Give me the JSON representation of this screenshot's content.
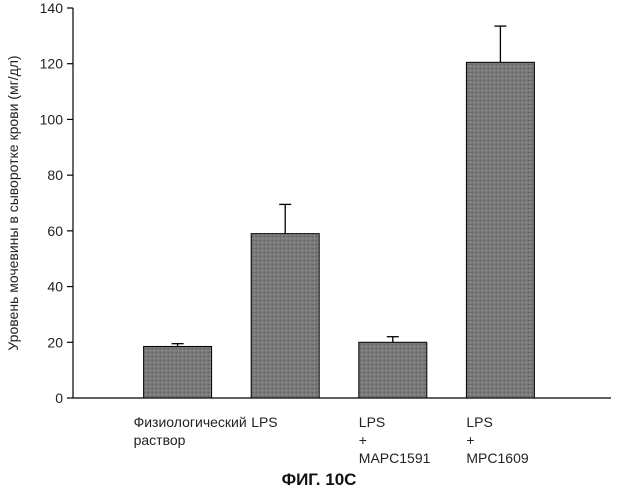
{
  "chart_data": {
    "type": "bar",
    "title": "",
    "xlabel": "",
    "ylabel": "Уровень мочевины в сыворотке крови (мг/дл)",
    "ylim": [
      0,
      140
    ],
    "yticks": [
      0,
      20,
      40,
      60,
      80,
      100,
      120,
      140
    ],
    "categories": [
      [
        "Физиологический",
        "раствор"
      ],
      [
        "LPS"
      ],
      [
        "LPS",
        "+",
        "MAPC1591"
      ],
      [
        "LPS",
        "+",
        "MPC1609"
      ]
    ],
    "values": [
      18.5,
      59,
      20,
      120.5
    ],
    "errors": [
      1,
      10.5,
      2,
      13
    ],
    "bar_color": "#7a7a7a",
    "grid": false,
    "legend": "none"
  },
  "figure_caption": "ФИГ. 10С"
}
